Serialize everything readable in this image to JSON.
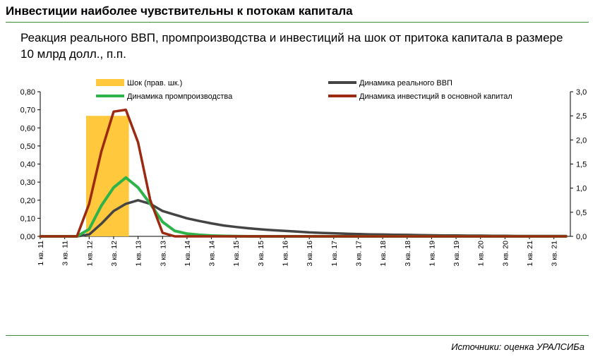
{
  "header": {
    "title": "Инвестиции наиболее чувствительны к потокам капитала",
    "subtitle": "Реакция реального ВВП, промпроизводства и инвестиций на шок от притока капитала в размере 10 млрд долл., п.п."
  },
  "footer": {
    "source": "Источники: оценка УРАЛСИБа"
  },
  "colors": {
    "shock": "#FFC83D",
    "gdp": "#444444",
    "industry": "#2DB34A",
    "investment": "#9B2A10",
    "rule": "#3A8A3A"
  },
  "chart_data": {
    "type": "line",
    "categories": [
      "1 кв. 11",
      "2 кв. 11",
      "3 кв. 11",
      "4 кв. 11",
      "1 кв. 12",
      "2 кв. 12",
      "3 кв. 12",
      "4 кв. 12",
      "1 кв. 13",
      "2 кв. 13",
      "3 кв. 13",
      "4 кв. 13",
      "1 кв. 14",
      "2 кв. 14",
      "3 кв. 14",
      "4 кв. 14",
      "1 кв. 15",
      "2 кв. 15",
      "3 кв. 15",
      "4 кв. 15",
      "1 кв. 16",
      "2 кв. 16",
      "3 кв. 16",
      "4 кв. 16",
      "1 кв. 17",
      "2 кв. 17",
      "3 кв. 17",
      "4 кв. 17",
      "1 кв. 18",
      "2 кв. 18",
      "3 кв. 18",
      "4 кв. 18",
      "1 кв. 19",
      "2 кв. 19",
      "3 кв. 19",
      "4 кв. 19",
      "1 кв. 20",
      "2 кв. 20",
      "3 кв. 20",
      "4 кв. 20",
      "1 кв. 21",
      "2 кв. 21",
      "3 кв. 21",
      "4 кв. 21"
    ],
    "x_tick_labels": [
      "1 кв. 11",
      "3 кв. 11",
      "1 кв. 12",
      "3 кв. 12",
      "1 кв. 13",
      "3 кв. 13",
      "1 кв. 14",
      "3 кв. 14",
      "1 кв. 15",
      "3 кв. 15",
      "1 кв. 16",
      "3 кв. 16",
      "1 кв. 17",
      "3 кв. 17",
      "1 кв. 18",
      "3 кв. 18",
      "1 кв. 19",
      "3 кв. 19",
      "1 кв. 20",
      "3 кв. 20",
      "1 кв. 21",
      "3 кв. 21"
    ],
    "y_left": {
      "min": 0,
      "max": 0.8,
      "step": 0.1,
      "tick_labels": [
        "0,00",
        "0,10",
        "0,20",
        "0,30",
        "0,40",
        "0,50",
        "0,60",
        "0,70",
        "0,80"
      ]
    },
    "y_right": {
      "min": 0,
      "max": 3.0,
      "step": 0.5,
      "tick_labels": [
        "0,0",
        "0,5",
        "1,0",
        "1,5",
        "2,0",
        "2,5",
        "3,0"
      ]
    },
    "legend": [
      {
        "name": "Шок  (прав. шк.)",
        "key": "shock"
      },
      {
        "name": "Динамика реального ВВП",
        "key": "gdp"
      },
      {
        "name": "Динамика промпроизводства",
        "key": "industry"
      },
      {
        "name": "Динамика инвестиций в основной капитал",
        "key": "investment"
      }
    ],
    "shock": {
      "axis": "right",
      "from": "1 кв. 12",
      "to": "4 кв. 12",
      "value": 2.5
    },
    "series": [
      {
        "key": "gdp",
        "axis": "left",
        "values": [
          0,
          0,
          0,
          0,
          0.01,
          0.07,
          0.14,
          0.18,
          0.2,
          0.18,
          0.14,
          0.12,
          0.1,
          0.085,
          0.072,
          0.06,
          0.052,
          0.045,
          0.039,
          0.034,
          0.03,
          0.026,
          0.022,
          0.019,
          0.017,
          0.015,
          0.013,
          0.011,
          0.01,
          0.009,
          0.008,
          0.007,
          0.006,
          0.005,
          0.005,
          0.004,
          0.004,
          0.003,
          0.003,
          0.002,
          0.002,
          0.002,
          0.002,
          0.002
        ]
      },
      {
        "key": "industry",
        "axis": "left",
        "values": [
          0,
          0,
          0,
          0,
          0.04,
          0.17,
          0.27,
          0.325,
          0.27,
          0.18,
          0.08,
          0.03,
          0.015,
          0.008,
          0.004,
          0.002,
          0.001,
          0,
          0,
          0,
          0,
          0,
          0,
          0,
          0,
          0,
          0,
          0,
          0,
          0,
          0,
          0,
          0,
          0,
          0,
          0,
          0,
          0,
          0,
          0,
          0,
          0,
          0,
          0
        ]
      },
      {
        "key": "investment",
        "axis": "left",
        "values": [
          0,
          0,
          0,
          0,
          0.18,
          0.47,
          0.69,
          0.7,
          0.52,
          0.2,
          0.02,
          0,
          0,
          0,
          0,
          0,
          0,
          0,
          0,
          0,
          0,
          0,
          0,
          0,
          0,
          0,
          0,
          0,
          0,
          0,
          0,
          0,
          0,
          0,
          0,
          0,
          0,
          0,
          0,
          0,
          0,
          0,
          0,
          0
        ]
      }
    ]
  }
}
